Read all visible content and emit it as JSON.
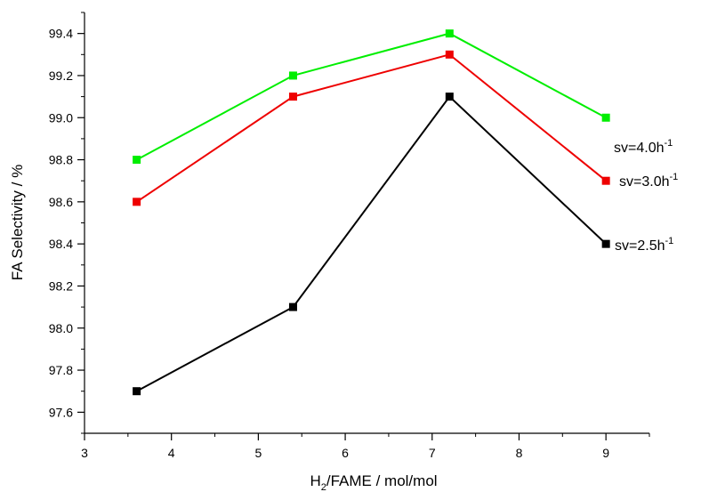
{
  "chart_data": {
    "type": "line",
    "xlabel": "H2/FAME / mol/mol",
    "ylabel": "FA Selectivity / %",
    "xlim": [
      3,
      9.5
    ],
    "ylim": [
      97.5,
      99.5
    ],
    "x_ticks": [
      3,
      4,
      5,
      6,
      7,
      8,
      9
    ],
    "x_tick_labels": [
      "3",
      "4",
      "5",
      "6",
      "7",
      "8",
      "9"
    ],
    "y_ticks": [
      97.6,
      97.8,
      98.0,
      98.2,
      98.4,
      98.6,
      98.8,
      99.0,
      99.2,
      99.4
    ],
    "y_tick_labels": [
      "97.6",
      "97.8",
      "98.0",
      "98.2",
      "98.4",
      "98.6",
      "98.8",
      "99.0",
      "99.2",
      "99.4"
    ],
    "grid": false,
    "x": [
      3.6,
      5.4,
      7.2,
      9.0
    ],
    "series": [
      {
        "name": "sv=4.0h-1",
        "values": [
          98.8,
          99.2,
          99.4,
          99.0
        ],
        "color": "#00ee00"
      },
      {
        "name": "sv=3.0h-1",
        "values": [
          98.6,
          99.1,
          99.3,
          98.7
        ],
        "color": "#ee0000"
      },
      {
        "name": "sv=2.5h-1",
        "values": [
          97.7,
          98.1,
          99.1,
          98.4
        ],
        "color": "#000000"
      }
    ]
  },
  "text": {
    "ylabel": "FA Selectivity /  %",
    "xlabel_pre": "H",
    "xlabel_sub": "2",
    "xlabel_post": "/FAME   /  mol/mol",
    "series_labels": [
      {
        "base": "sv=4.0h",
        "sup": "-1"
      },
      {
        "base": "sv=3.0h",
        "sup": "-1"
      },
      {
        "base": "sv=2.5h",
        "sup": "-1"
      }
    ]
  }
}
